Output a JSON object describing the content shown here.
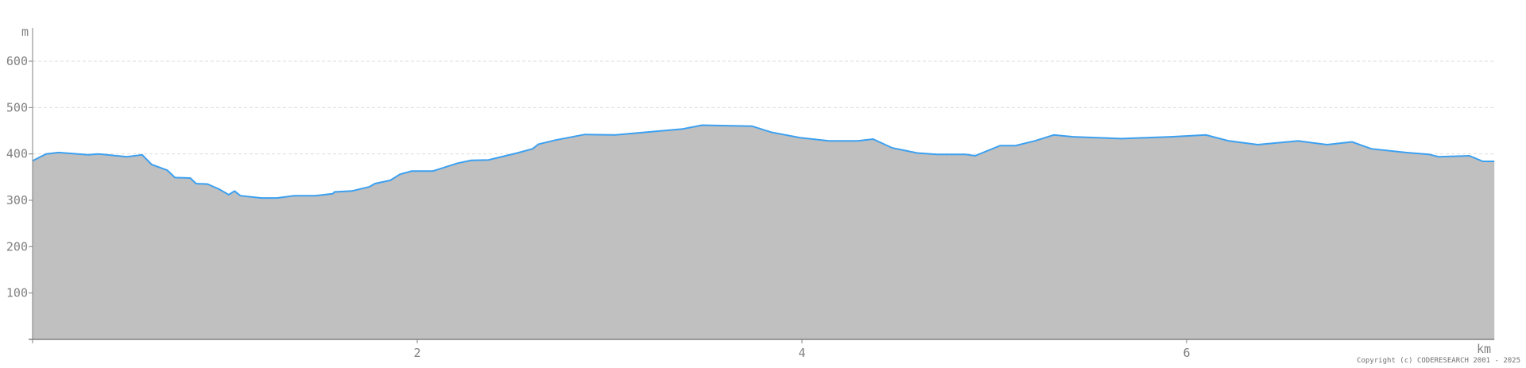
{
  "chart_data": {
    "type": "area",
    "title": "",
    "xlabel": "km",
    "ylabel": "m",
    "xlim": [
      0,
      7.6
    ],
    "ylim": [
      0,
      660
    ],
    "x_ticks": [
      2,
      4,
      6
    ],
    "y_ticks": [
      100,
      200,
      300,
      400,
      500,
      600
    ],
    "grid": "horizontal dashed",
    "colors": {
      "fill": "#c0c0c0",
      "line": "#3ca0f0",
      "grid": "#dddddd",
      "axis": "#808080"
    },
    "points": [
      [
        0,
        385
      ],
      [
        0.07,
        400
      ],
      [
        0.135,
        403
      ],
      [
        0.29,
        398
      ],
      [
        0.34,
        400
      ],
      [
        0.49,
        394
      ],
      [
        0.57,
        398
      ],
      [
        0.62,
        377
      ],
      [
        0.7,
        365
      ],
      [
        0.74,
        349
      ],
      [
        0.82,
        348
      ],
      [
        0.85,
        336
      ],
      [
        0.91,
        335
      ],
      [
        0.97,
        324
      ],
      [
        1.02,
        312
      ],
      [
        1.05,
        320
      ],
      [
        1.08,
        310
      ],
      [
        1.19,
        305
      ],
      [
        1.27,
        305
      ],
      [
        1.36,
        310
      ],
      [
        1.47,
        310
      ],
      [
        1.56,
        314
      ],
      [
        1.57,
        318
      ],
      [
        1.66,
        320
      ],
      [
        1.75,
        329
      ],
      [
        1.78,
        336
      ],
      [
        1.86,
        343
      ],
      [
        1.91,
        356
      ],
      [
        1.97,
        363
      ],
      [
        2.08,
        363
      ],
      [
        2.21,
        380
      ],
      [
        2.28,
        386
      ],
      [
        2.37,
        387
      ],
      [
        2.52,
        402
      ],
      [
        2.6,
        411
      ],
      [
        2.63,
        421
      ],
      [
        2.72,
        430
      ],
      [
        2.87,
        442
      ],
      [
        3.03,
        441
      ],
      [
        3.38,
        454
      ],
      [
        3.48,
        462
      ],
      [
        3.74,
        460
      ],
      [
        3.84,
        447
      ],
      [
        3.99,
        435
      ],
      [
        4.14,
        428
      ],
      [
        4.29,
        428
      ],
      [
        4.37,
        432
      ],
      [
        4.47,
        413
      ],
      [
        4.6,
        402
      ],
      [
        4.7,
        399
      ],
      [
        4.85,
        399
      ],
      [
        4.9,
        396
      ],
      [
        5.03,
        418
      ],
      [
        5.11,
        418
      ],
      [
        5.21,
        428
      ],
      [
        5.31,
        441
      ],
      [
        5.41,
        437
      ],
      [
        5.66,
        433
      ],
      [
        5.92,
        437
      ],
      [
        6.1,
        441
      ],
      [
        6.22,
        428
      ],
      [
        6.37,
        420
      ],
      [
        6.58,
        428
      ],
      [
        6.73,
        420
      ],
      [
        6.86,
        426
      ],
      [
        6.96,
        411
      ],
      [
        7.14,
        403
      ],
      [
        7.26,
        399
      ],
      [
        7.31,
        394
      ],
      [
        7.47,
        396
      ],
      [
        7.54,
        384
      ],
      [
        7.6,
        384
      ]
    ]
  },
  "copyright": "Copyright (c) CODERESEARCH 2001 - 2025"
}
